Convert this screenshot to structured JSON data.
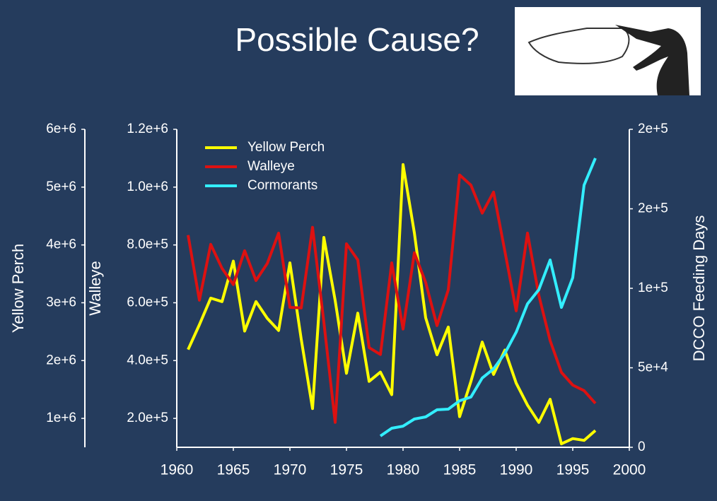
{
  "chart_data": {
    "type": "line",
    "title": "Possible Cause?",
    "x": [
      1961,
      1962,
      1963,
      1964,
      1965,
      1966,
      1967,
      1968,
      1969,
      1970,
      1971,
      1972,
      1973,
      1974,
      1975,
      1976,
      1977,
      1978,
      1979,
      1980,
      1981,
      1982,
      1983,
      1984,
      1985,
      1986,
      1987,
      1988,
      1989,
      1990,
      1991,
      1992,
      1993,
      1994,
      1995,
      1996,
      1997
    ],
    "xlim": [
      1960,
      2000
    ],
    "xticks": [
      1960,
      1965,
      1970,
      1975,
      1980,
      1985,
      1990,
      1995,
      2000
    ],
    "ylabel": "Yellow Perch",
    "ylim": [
      500000,
      6000000
    ],
    "yticks": [
      {
        "value": 1000000,
        "label": "1e+6"
      },
      {
        "value": 2000000,
        "label": "2e+6"
      },
      {
        "value": 3000000,
        "label": "3e+6"
      },
      {
        "value": 4000000,
        "label": "4e+6"
      },
      {
        "value": 5000000,
        "label": "5e+6"
      },
      {
        "value": 6000000,
        "label": "6e+6"
      }
    ],
    "y2label": "Walleye",
    "y2lim": [
      100000,
      1200000
    ],
    "y2ticks": [
      {
        "value": 200000,
        "label": "2.0e+5"
      },
      {
        "value": 400000,
        "label": "4.0e+5"
      },
      {
        "value": 600000,
        "label": "6.0e+5"
      },
      {
        "value": 800000,
        "label": "8.0e+5"
      },
      {
        "value": 1000000,
        "label": "1.0e+6"
      },
      {
        "value": 1200000,
        "label": "1.2e+6"
      }
    ],
    "y3label": "DCCO Feeding Days",
    "y3lim": [
      0,
      200000
    ],
    "y3ticks": [
      0,
      {
        "value": 50000,
        "label": "5e+4"
      },
      {
        "value": 100000,
        "label": "1e+5"
      },
      {
        "value": 150000,
        "label": "2e+5"
      },
      {
        "value": 200000,
        "label": "2e+5"
      }
    ],
    "legend": "upper left",
    "series": [
      {
        "name": "Yellow Perch",
        "color": "#ffff00",
        "axis": "y",
        "values": [
          2190000,
          2620000,
          3080000,
          3020000,
          3720000,
          2510000,
          3020000,
          2730000,
          2520000,
          3690000,
          2370000,
          1170000,
          4130000,
          3040000,
          1780000,
          2820000,
          1640000,
          1800000,
          1410000,
          5390000,
          4210000,
          2740000,
          2100000,
          2580000,
          1030000,
          1640000,
          2320000,
          1760000,
          2180000,
          1610000,
          1230000,
          930000,
          1330000,
          560000,
          650000,
          620000,
          790000
        ]
      },
      {
        "name": "Walleye",
        "color": "#dd1111",
        "axis": "y2",
        "values": [
          834000,
          609000,
          802000,
          719000,
          663000,
          780000,
          677000,
          736000,
          841000,
          584000,
          582000,
          861000,
          533000,
          186000,
          804000,
          748000,
          445000,
          421000,
          738000,
          509000,
          773000,
          670000,
          521000,
          645000,
          1042000,
          1007000,
          910000,
          983000,
          778000,
          572000,
          841000,
          626000,
          469000,
          359000,
          315000,
          296000,
          252000
        ]
      },
      {
        "name": "Cormorants",
        "color": "#33eeff",
        "axis": "y3",
        "values": [
          null,
          null,
          null,
          null,
          null,
          null,
          null,
          null,
          null,
          null,
          null,
          null,
          null,
          null,
          null,
          null,
          null,
          7100,
          12000,
          13300,
          17800,
          19100,
          23600,
          24000,
          29300,
          31600,
          43600,
          49300,
          59100,
          72400,
          90200,
          99100,
          117800,
          88000,
          106700,
          164900,
          181800
        ]
      }
    ]
  }
}
